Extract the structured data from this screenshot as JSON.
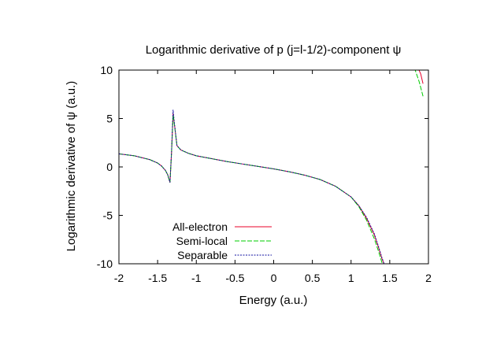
{
  "chart_data": {
    "type": "line",
    "title": "Logarithmic derivative of p (j=l-1/2)-component ψ",
    "xlabel": "Energy (a.u.)",
    "ylabel": "Logarithmic derivative of ψ (a.u.)",
    "xlim": [
      -2,
      2
    ],
    "ylim": [
      -10,
      10
    ],
    "xticks": [
      "-2",
      "-1.5",
      "-1",
      "-0.5",
      "0",
      "0.5",
      "1",
      "1.5",
      "2"
    ],
    "yticks": [
      "10",
      "5",
      "0",
      "-5",
      "-10"
    ],
    "grid": false,
    "legend": "bottom-left",
    "series": [
      {
        "name": "All-electron",
        "color": "#e8002a",
        "dash": "",
        "x": [
          -2,
          -1.8,
          -1.6,
          -1.5,
          -1.45,
          -1.4,
          -1.37,
          -1.34,
          -1.32,
          -1.3,
          -1.28,
          -1.25,
          -1.2,
          -1.1,
          -1.0,
          -0.8,
          -0.6,
          -0.4,
          -0.2,
          0,
          0.2,
          0.4,
          0.6,
          0.8,
          1.0,
          1.1,
          1.2,
          1.3,
          1.35,
          1.4,
          1.45,
          1.48,
          1.8,
          1.85,
          1.9,
          1.93
        ],
        "y": [
          1.35,
          1.15,
          0.75,
          0.4,
          0.1,
          -0.35,
          -0.8,
          -1.6,
          1.5,
          5.5,
          4.2,
          2.2,
          1.75,
          1.4,
          1.15,
          0.85,
          0.55,
          0.3,
          0.05,
          -0.2,
          -0.5,
          -0.85,
          -1.3,
          -2.0,
          -3.1,
          -4.0,
          -5.3,
          -7.0,
          -8.2,
          -9.5,
          -10.5,
          -11.5,
          11.5,
          10.5,
          9.6,
          8.6
        ]
      },
      {
        "name": "Semi-local",
        "color": "#00cc00",
        "dash": "6 2",
        "x": [
          -2,
          -1.8,
          -1.6,
          -1.5,
          -1.45,
          -1.4,
          -1.37,
          -1.34,
          -1.32,
          -1.3,
          -1.28,
          -1.25,
          -1.2,
          -1.1,
          -1.0,
          -0.8,
          -0.6,
          -0.4,
          -0.2,
          0,
          0.2,
          0.4,
          0.6,
          0.8,
          1.0,
          1.1,
          1.2,
          1.3,
          1.35,
          1.4,
          1.43,
          1.46,
          1.78,
          1.82,
          1.88,
          1.93
        ],
        "y": [
          1.35,
          1.15,
          0.75,
          0.4,
          0.1,
          -0.35,
          -0.8,
          -1.6,
          1.5,
          5.4,
          4.2,
          2.2,
          1.75,
          1.4,
          1.15,
          0.85,
          0.55,
          0.3,
          0.05,
          -0.2,
          -0.5,
          -0.85,
          -1.3,
          -2.0,
          -3.1,
          -4.1,
          -5.5,
          -7.4,
          -8.6,
          -9.9,
          -10.8,
          -11.8,
          11.5,
          10.2,
          8.8,
          7.3
        ]
      },
      {
        "name": "Separable",
        "color": "#1010a0",
        "dash": "2 1.5",
        "x": [
          -2,
          -1.8,
          -1.6,
          -1.5,
          -1.45,
          -1.4,
          -1.37,
          -1.34,
          -1.32,
          -1.3,
          -1.28,
          -1.25,
          -1.2,
          -1.1,
          -1.0,
          -0.8,
          -0.6,
          -0.4,
          -0.2,
          0,
          0.2,
          0.4,
          0.6,
          0.8,
          1.0,
          1.1,
          1.2,
          1.3,
          1.35,
          1.4,
          1.45,
          1.48
        ],
        "y": [
          1.35,
          1.15,
          0.75,
          0.4,
          0.1,
          -0.35,
          -0.8,
          -1.6,
          1.6,
          5.9,
          4.3,
          2.2,
          1.75,
          1.4,
          1.15,
          0.85,
          0.55,
          0.3,
          0.05,
          -0.2,
          -0.5,
          -0.85,
          -1.3,
          -2.0,
          -3.1,
          -4.0,
          -5.2,
          -6.9,
          -8.1,
          -9.4,
          -10.5,
          -11.5
        ]
      }
    ]
  }
}
